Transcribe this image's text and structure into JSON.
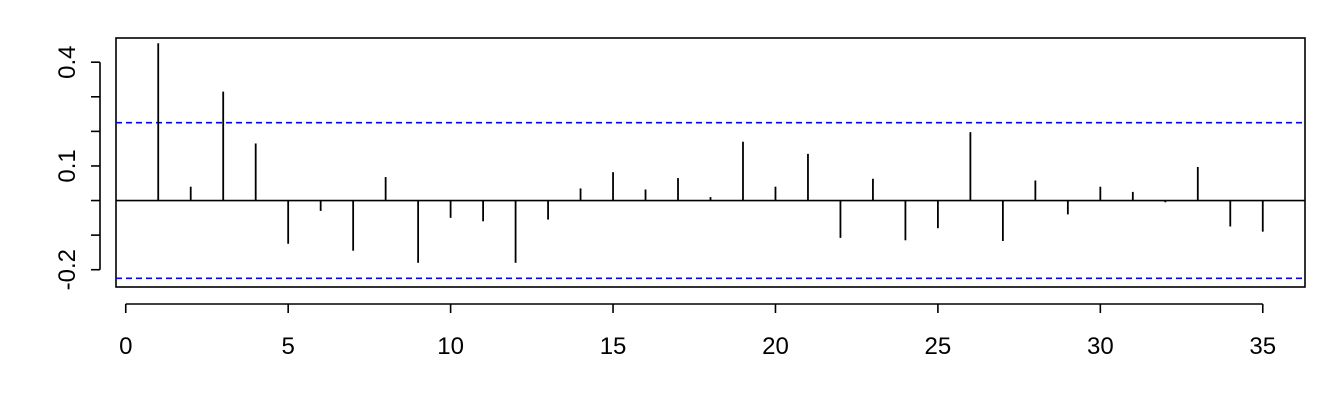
{
  "chart_data": {
    "type": "bar",
    "title": "",
    "xlabel": "",
    "ylabel": "",
    "xlim": [
      -0.3,
      36.3
    ],
    "ylim": [
      -0.25,
      0.47
    ],
    "x_ticks": [
      0,
      5,
      10,
      15,
      20,
      25,
      30,
      35
    ],
    "x_tick_labels": [
      "0",
      "5",
      "10",
      "15",
      "20",
      "25",
      "30",
      "35"
    ],
    "y_ticks": [
      -0.2,
      -0.1,
      0.0,
      0.1,
      0.2,
      0.3,
      0.4
    ],
    "y_tick_labels": [
      "-0.2",
      "",
      "",
      "0.1",
      "",
      "",
      "0.4"
    ],
    "confidence_bounds": [
      0.225,
      -0.225
    ],
    "zero_line": true,
    "grid": false,
    "colors": {
      "spikes": "#000000",
      "bounds": "#0000ff",
      "axis": "#000000"
    },
    "lags": [
      1,
      2,
      3,
      4,
      5,
      6,
      7,
      8,
      9,
      10,
      11,
      12,
      13,
      14,
      15,
      16,
      17,
      18,
      19,
      20,
      21,
      22,
      23,
      24,
      25,
      26,
      27,
      28,
      29,
      30,
      31,
      32,
      33,
      34,
      35
    ],
    "values": [
      0.455,
      0.04,
      0.315,
      0.165,
      -0.125,
      -0.03,
      -0.145,
      0.068,
      -0.18,
      -0.05,
      -0.06,
      -0.18,
      -0.055,
      0.035,
      0.082,
      0.032,
      0.065,
      0.01,
      0.17,
      0.04,
      0.135,
      -0.108,
      0.063,
      -0.115,
      -0.08,
      0.198,
      -0.117,
      0.058,
      -0.04,
      0.04,
      0.025,
      -0.005,
      0.097,
      -0.075,
      -0.09
    ]
  }
}
